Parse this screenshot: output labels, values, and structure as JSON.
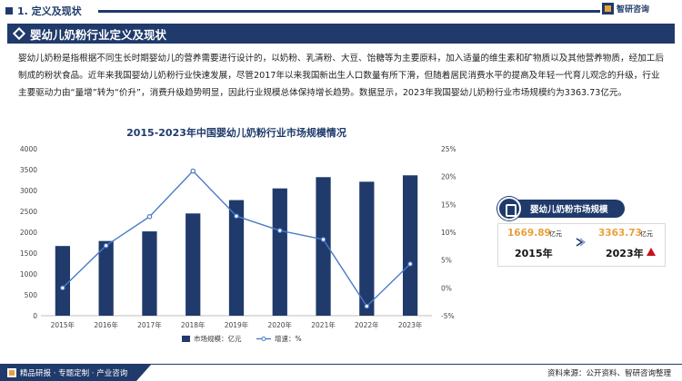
{
  "header": {
    "section_label": "1. 定义及现状",
    "brand": "智研咨询"
  },
  "title": "婴幼儿奶粉行业定义及现状",
  "intro": "婴幼儿奶粉是指根据不同生长时期婴幼儿的营养需要进行设计的，以奶粉、乳清粉、大豆、饴糖等为主要原料，加入适量的维生素和矿物质以及其他营养物质，经加工后制成的粉状食品。近年来我国婴幼儿奶粉行业快速发展，尽管2017年以来我国新出生人口数量有所下滑，但随着居民消费水平的提高及年轻一代育儿观念的升级，行业主要驱动力由“量增”转为“价升”，消费升级趋势明显，因此行业规模总体保持增长趋势。数据显示，2023年我国婴幼儿奶粉行业市场规模约为3363.73亿元。",
  "chart_data": {
    "type": "bar+line",
    "title": "2015-2023年中国婴幼儿奶粉行业市场规模情况",
    "categories": [
      "2015年",
      "2016年",
      "2017年",
      "2018年",
      "2019年",
      "2020年",
      "2021年",
      "2022年",
      "2023年"
    ],
    "series": [
      {
        "name": "市场规模：亿元",
        "type": "bar",
        "axis": "left",
        "values": [
          1669.89,
          1790,
          2020,
          2450,
          2770,
          3050,
          3320,
          3210,
          3363.73
        ]
      },
      {
        "name": "增速：%",
        "type": "line",
        "axis": "right",
        "values": [
          0.0,
          7.6,
          12.8,
          21.0,
          12.9,
          10.3,
          8.7,
          -3.3,
          4.3
        ]
      }
    ],
    "ylim_left": [
      0,
      4000
    ],
    "yticks_left": [
      0,
      500,
      1000,
      1500,
      2000,
      2500,
      3000,
      3500,
      4000
    ],
    "ylim_right": [
      -5,
      25
    ],
    "yticks_right": [
      "-5%",
      "0%",
      "5%",
      "10%",
      "15%",
      "20%",
      "25%"
    ],
    "grid": false,
    "legend": "bottom",
    "colors": {
      "bar": "#1f3a6b",
      "line": "#4a7bc8",
      "point_fill": "#ffffff"
    }
  },
  "card": {
    "title": "婴幼儿奶粉市场规模",
    "start_value": "1669.89",
    "start_unit": "亿元",
    "start_year": "2015年",
    "end_value": "3363.73",
    "end_unit": "亿元",
    "end_year": "2023年"
  },
  "footer": {
    "left_text": "精品研报 · 专题定制 · 产业咨询",
    "source": "资料来源：公开资料、智研咨询整理"
  }
}
